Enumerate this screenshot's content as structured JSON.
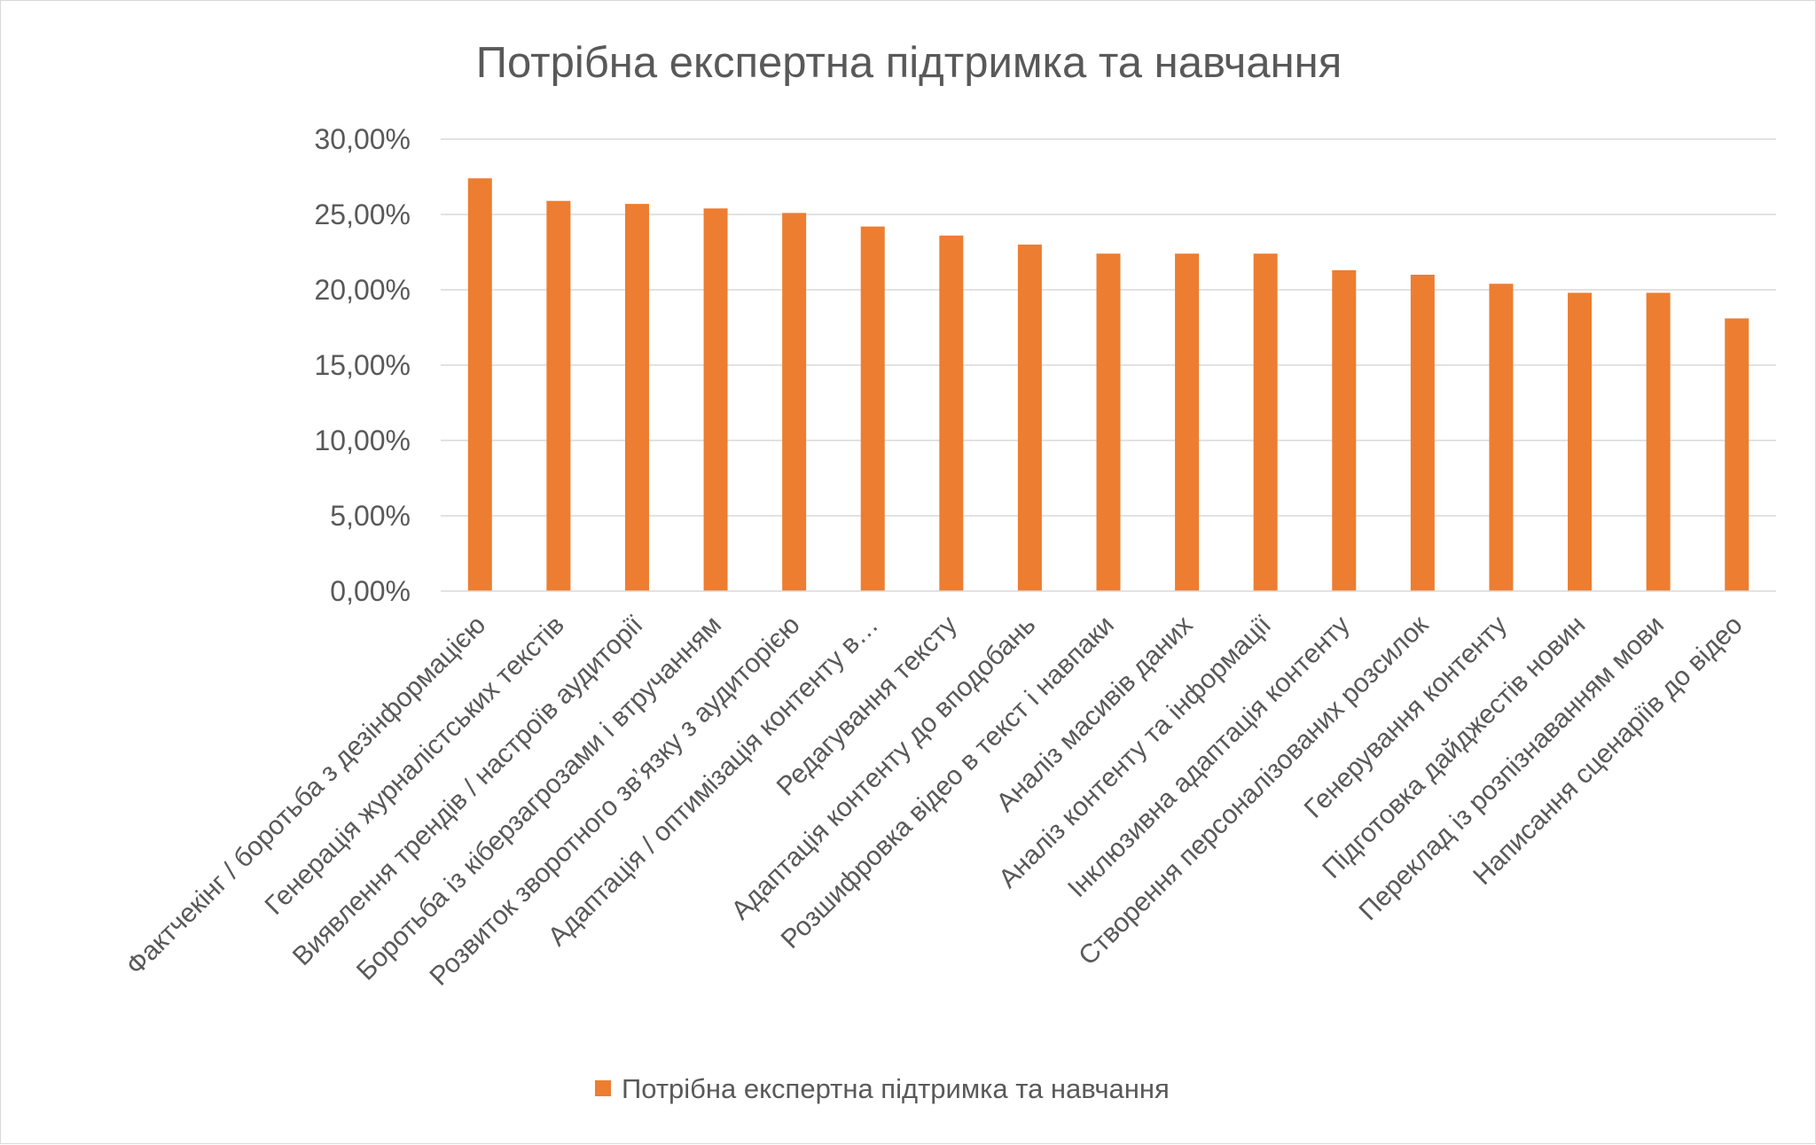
{
  "chart_data": {
    "type": "bar",
    "title": "Потрібна експертна підтримка та навчання",
    "xlabel": "",
    "ylabel": "",
    "ylim": [
      0,
      0.3
    ],
    "y_ticks": [
      "0,00%",
      "5,00%",
      "10,00%",
      "15,00%",
      "20,00%",
      "25,00%",
      "30,00%"
    ],
    "y_tick_values": [
      0,
      0.05,
      0.1,
      0.15,
      0.2,
      0.25,
      0.3
    ],
    "grid": true,
    "legend_position": "bottom",
    "color": "#ED7D31",
    "categories": [
      "Фактчекінг / боротьба з дезінформацією",
      "Генерація журналістських текстів",
      "Виявлення трендів / настроїв аудиторії",
      "Боротьба із кіберзагрозами і втручанням",
      "Розвиток зворотного зв’язку з аудиторією",
      "Адаптація / оптимізація контенту в…",
      "Редагування тексту",
      "Адаптація контенту до вподобань",
      "Розшифровка відео в текст і навпаки",
      "Аналіз масивів даних",
      "Аналіз контенту та інформації",
      "Інклюзивна адаптація контенту",
      "Створення персоналізованих розсилок",
      "Генерування контенту",
      "Підготовка дайджестів новин",
      "Переклад із розпізнаванням мови",
      "Написання сценаріїв до відео"
    ],
    "series": [
      {
        "name": "Потрібна експертна підтримка та навчання",
        "values": [
          0.274,
          0.259,
          0.257,
          0.254,
          0.251,
          0.242,
          0.236,
          0.23,
          0.224,
          0.224,
          0.224,
          0.213,
          0.21,
          0.204,
          0.198,
          0.198,
          0.181
        ]
      }
    ]
  }
}
